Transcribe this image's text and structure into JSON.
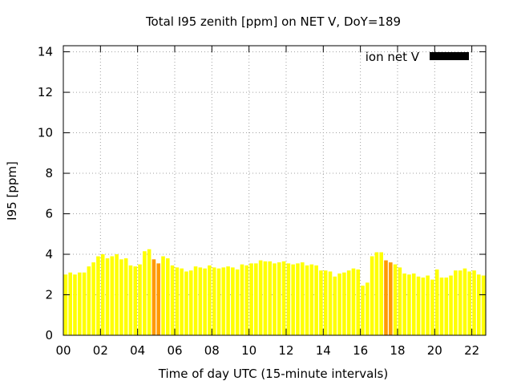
{
  "chart_data": {
    "type": "bar",
    "title": "Total I95 zenith [ppm] on NET V, DoY=189",
    "xlabel": "Time of day UTC (15-minute intervals)",
    "ylabel": "I95 [ppm]",
    "ylim": [
      0,
      14.3
    ],
    "xlim": [
      0,
      22.75
    ],
    "yticks": [
      0,
      2,
      4,
      6,
      8,
      10,
      12,
      14
    ],
    "xticks": [
      "00",
      "02",
      "04",
      "06",
      "08",
      "10",
      "12",
      "14",
      "16",
      "18",
      "20",
      "22"
    ],
    "xtick_hours": [
      0,
      2,
      4,
      6,
      8,
      10,
      12,
      14,
      16,
      18,
      20,
      22
    ],
    "bin_hours": 0.25,
    "grid": true,
    "legend": {
      "label": "ion net V",
      "color": "#000000",
      "position": "top-right"
    },
    "colors": {
      "normal": "#ffff00",
      "highlight": "#ff9900",
      "grid": "#a0a0a0"
    },
    "highlighted_indices": [
      19,
      20,
      69,
      70
    ],
    "values": [
      3.0,
      3.1,
      3.0,
      3.1,
      3.1,
      3.4,
      3.6,
      3.9,
      4.0,
      3.8,
      3.9,
      4.0,
      3.75,
      3.8,
      3.45,
      3.4,
      3.5,
      4.15,
      4.25,
      3.75,
      3.55,
      3.9,
      3.8,
      3.45,
      3.35,
      3.3,
      3.15,
      3.2,
      3.4,
      3.35,
      3.3,
      3.45,
      3.35,
      3.3,
      3.35,
      3.4,
      3.35,
      3.25,
      3.5,
      3.45,
      3.55,
      3.55,
      3.7,
      3.65,
      3.65,
      3.55,
      3.6,
      3.65,
      3.55,
      3.5,
      3.55,
      3.6,
      3.45,
      3.5,
      3.45,
      3.2,
      3.2,
      3.15,
      2.9,
      3.05,
      3.1,
      3.2,
      3.3,
      3.25,
      2.45,
      2.6,
      3.9,
      4.1,
      4.1,
      3.7,
      3.6,
      3.5,
      3.35,
      3.05,
      3.0,
      3.05,
      2.9,
      2.85,
      2.95,
      2.75,
      3.25,
      2.85,
      2.85,
      2.95,
      3.2,
      3.2,
      3.3,
      3.15,
      3.2,
      3.0,
      2.95
    ]
  }
}
